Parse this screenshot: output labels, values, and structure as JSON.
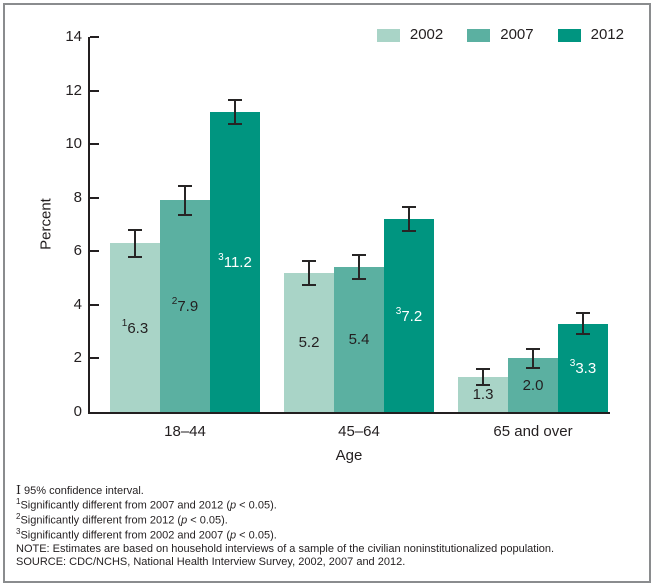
{
  "chart_data": {
    "type": "bar",
    "title": "",
    "xlabel": "Age",
    "ylabel": "Percent",
    "ylim": [
      0,
      14
    ],
    "ytick_step": 2,
    "grid": false,
    "legend_position": "top-right",
    "error_bars": "95% confidence interval",
    "categories": [
      "18–44",
      "45–64",
      "65 and over"
    ],
    "series": [
      {
        "name": "2002",
        "color": "#a9d4c7",
        "label_color": "#231f20",
        "values": [
          6.3,
          5.2,
          1.3
        ],
        "ci_half_width": [
          0.5,
          0.45,
          0.3
        ],
        "footnote_marks": [
          "1",
          "",
          ""
        ]
      },
      {
        "name": "2007",
        "color": "#5bb0a1",
        "label_color": "#231f20",
        "values": [
          7.9,
          5.4,
          2.0
        ],
        "ci_half_width": [
          0.55,
          0.45,
          0.35
        ],
        "footnote_marks": [
          "2",
          "",
          ""
        ]
      },
      {
        "name": "2012",
        "color": "#009580",
        "label_color": "#ffffff",
        "values": [
          11.2,
          7.2,
          3.3
        ],
        "ci_half_width": [
          0.45,
          0.45,
          0.4
        ],
        "footnote_marks": [
          "3",
          "3",
          "3"
        ]
      }
    ]
  },
  "footnotes": {
    "ci_symbol": "I",
    "ci_text": " 95% confidence interval.",
    "items": [
      {
        "sup": "1",
        "pre": "Significantly different from 2007 and 2012 (",
        "p": "p",
        "post": " < 0.05)."
      },
      {
        "sup": "2",
        "pre": "Significantly different from 2012 (",
        "p": "p",
        "post": " < 0.05)."
      },
      {
        "sup": "3",
        "pre": "Significantly different from 2002 and 2007 (",
        "p": "p",
        "post": " < 0.05)."
      }
    ],
    "note": "NOTE: Estimates are based on household interviews of a sample of the civilian noninstitutionalized population.",
    "source": "SOURCE: CDC/NCHS, National Health Interview Survey, 2002, 2007 and 2012."
  },
  "colors": {
    "axis": "#231f20",
    "text": "#231f20",
    "border": "#8a8c8e",
    "background": "#ffffff"
  }
}
